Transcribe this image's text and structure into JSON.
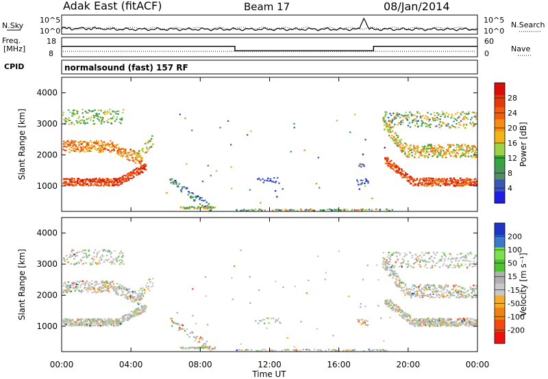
{
  "header": {
    "station": "Adak East (fitACF)",
    "beam": "Beam 17",
    "date": "08/Jan/2014"
  },
  "nsky_panel": {
    "left_label": "N.Sky",
    "left_ticks": [
      "10^5",
      "10^0"
    ],
    "right_label": "N.Search",
    "right_ticks": [
      "10^5",
      "10^0"
    ]
  },
  "freq_panel": {
    "left_label_1": "Freq.",
    "left_label_2": "[MHz]",
    "left_ticks": [
      "18",
      "8"
    ],
    "right_label": "Nave",
    "right_ticks": [
      "60",
      "0"
    ]
  },
  "cpid": {
    "label": "CPID",
    "text": "normalsound (fast) 157 RF"
  },
  "colors": {
    "power_scale": [
      "#1f1fe0",
      "#3b57b7",
      "#4f8f62",
      "#33a640",
      "#9ed14a",
      "#f0b519",
      "#f38d14",
      "#ee5d10",
      "#e23a0e",
      "#d80e08"
    ],
    "velocity_scale": [
      "#ec1010",
      "#f24a0d",
      "#f2820f",
      "#f3ad2c",
      "#c8c8c8",
      "#b0b0b0",
      "#4dc332",
      "#7ddf4f",
      "#3d78cf",
      "#1c36c6"
    ]
  },
  "chart_data": [
    {
      "type": "line",
      "title": "N.Sky / N.Search",
      "x": [
        0,
        2,
        4,
        6,
        8,
        10,
        12,
        14,
        16,
        17.3,
        17.5,
        17.7,
        20,
        22,
        24
      ],
      "series": [
        {
          "name": "N.Sky",
          "values": [
            1.2,
            1.3,
            1.2,
            1.1,
            1.0,
            1.0,
            1.0,
            1.0,
            1.1,
            1.2,
            4.5,
            1.1,
            1.2,
            1.3,
            1.4
          ]
        }
      ],
      "ylabel": "N.Sky",
      "ylim": [
        0,
        5
      ],
      "yscale": "log"
    },
    {
      "type": "line",
      "title": "Freq. / Nave",
      "x": [
        0,
        10,
        10,
        18,
        18,
        24
      ],
      "series": [
        {
          "name": "Freq.",
          "values": [
            13.5,
            13.5,
            11,
            11,
            13.5,
            13.5
          ]
        }
      ],
      "ylabel": "Freq. [MHz]",
      "ylim": [
        8,
        18
      ]
    },
    {
      "type": "heatmap",
      "title": "Power",
      "xlabel": "Time UT",
      "ylabel": "Slant Range [km]",
      "xlim": [
        0,
        24
      ],
      "x_tick_labels": [
        "00:00",
        "04:00",
        "08:00",
        "12:00",
        "16:00",
        "20:00",
        "00:00"
      ],
      "ylim": [
        180,
        4500
      ],
      "y_tick_labels": [
        "1000",
        "2000",
        "3000",
        "4000"
      ],
      "colorbar_label": "Power [dB]",
      "colorbar_ticks": [
        "4",
        "8",
        "12",
        "16",
        "20",
        "24",
        "28"
      ],
      "colorbar_range": [
        0,
        30
      ]
    },
    {
      "type": "heatmap",
      "title": "Velocity",
      "xlabel": "Time UT",
      "ylabel": "Slant Range [km]",
      "xlim": [
        0,
        24
      ],
      "x_tick_labels": [
        "00:00",
        "04:00",
        "08:00",
        "12:00",
        "16:00",
        "20:00",
        "00:00"
      ],
      "ylim": [
        180,
        4500
      ],
      "y_tick_labels": [
        "1000",
        "2000",
        "3000",
        "4000"
      ],
      "colorbar_label": "Velocity [m s⁻¹]",
      "colorbar_ticks": [
        "-200",
        "-100",
        "-50",
        "-15",
        "15",
        "50",
        "100",
        "200"
      ],
      "colorbar_range": [
        -250,
        250
      ]
    }
  ],
  "x_axis": {
    "label": "Time UT"
  }
}
